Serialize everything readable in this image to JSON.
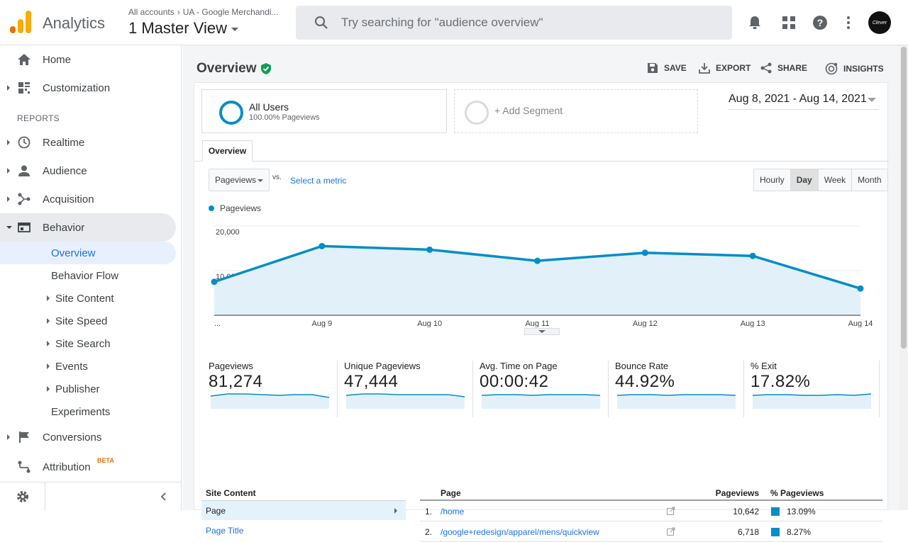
{
  "header": {
    "app_title": "Analytics",
    "breadcrumb": [
      "All accounts",
      "UA - Google Merchandi..."
    ],
    "view_name": "1 Master View",
    "search_placeholder": "Try searching for \"audience overview\"",
    "avatar_text": "Clever"
  },
  "sidebar": {
    "home": "Home",
    "customization": "Customization",
    "reports_heading": "REPORTS",
    "realtime": "Realtime",
    "audience": "Audience",
    "acquisition": "Acquisition",
    "behavior": "Behavior",
    "overview": "Overview",
    "behavior_flow": "Behavior Flow",
    "site_content": "Site Content",
    "site_speed": "Site Speed",
    "site_search": "Site Search",
    "events": "Events",
    "publisher": "Publisher",
    "experiments": "Experiments",
    "conversions": "Conversions",
    "attribution": "Attribution",
    "beta": "BETA"
  },
  "page": {
    "title": "Overview",
    "actions": {
      "save": "SAVE",
      "export": "EXPORT",
      "share": "SHARE",
      "insights": "INSIGHTS"
    },
    "segment": {
      "name": "All Users",
      "sub": "100.00% Pageviews",
      "add": "+ Add Segment"
    },
    "date_range": "Aug 8, 2021 - Aug 14, 2021",
    "tab": "Overview",
    "metric_select": "Pageviews",
    "vs": "vs.",
    "select_metric": "Select a metric",
    "granularity": [
      "Hourly",
      "Day",
      "Week",
      "Month"
    ],
    "granularity_selected": "Day"
  },
  "chart_data": {
    "type": "area",
    "series": [
      {
        "name": "Pageviews",
        "values": [
          7500,
          15500,
          14700,
          12200,
          14000,
          13300,
          6000
        ]
      }
    ],
    "categories": [
      "...",
      "Aug 9",
      "Aug 10",
      "Aug 11",
      "Aug 12",
      "Aug 13",
      "Aug 14"
    ],
    "yticks": [
      "20,000",
      "10,000"
    ],
    "ylim": [
      0,
      20000
    ],
    "color": "#058dc7",
    "grid": true,
    "legend": "top-left"
  },
  "kpis": [
    {
      "label": "Pageviews",
      "value": "81,274"
    },
    {
      "label": "Unique Pageviews",
      "value": "47,444"
    },
    {
      "label": "Avg. Time on Page",
      "value": "00:00:42"
    },
    {
      "label": "Bounce Rate",
      "value": "44.92%"
    },
    {
      "label": "% Exit",
      "value": "17.82%"
    }
  ],
  "site_content": {
    "heading": "Site Content",
    "items": [
      "Page",
      "Page Title"
    ]
  },
  "table": {
    "columns": [
      "Page",
      "Pageviews",
      "% Pageviews"
    ],
    "rows": [
      {
        "n": "1.",
        "page": "/home",
        "pageviews": "10,642",
        "pct": "13.09%"
      },
      {
        "n": "2.",
        "page": "/google+redesign/apparel/mens/quickview",
        "pageviews": "6,718",
        "pct": "8.27%"
      }
    ]
  }
}
